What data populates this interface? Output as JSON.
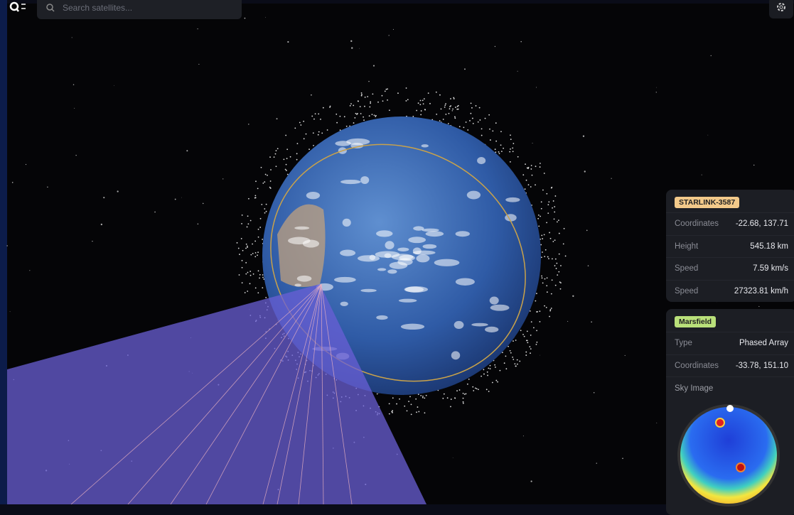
{
  "search": {
    "placeholder": "Search satellites..."
  },
  "satellite": {
    "name": "STARLINK-3587",
    "rows": [
      {
        "label": "Coordinates",
        "value": "-22.68, 137.71"
      },
      {
        "label": "Height",
        "value": "545.18 km"
      },
      {
        "label": "Speed",
        "value": "7.59 km/s"
      },
      {
        "label": "Speed",
        "value": "27323.81 km/h"
      }
    ]
  },
  "station": {
    "name": "Marsfield",
    "rows": [
      {
        "label": "Type",
        "value": "Phased Array"
      },
      {
        "label": "Coordinates",
        "value": "-33.78, 151.10"
      }
    ],
    "sky_image_label": "Sky Image"
  }
}
